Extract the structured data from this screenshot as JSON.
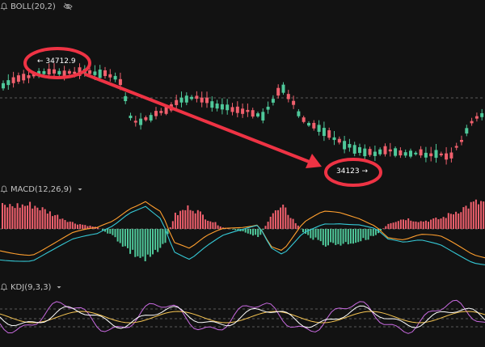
{
  "indicators": {
    "boll": {
      "label": "BOLL(20,2)",
      "icon": "bell-icon"
    },
    "macd": {
      "label": "MACD(12,26,9)",
      "icon": "bell-icon"
    },
    "kdj": {
      "label": "KDJ(9,3,3)",
      "icon": "bell-icon"
    }
  },
  "annotations": {
    "high": {
      "text": "← 34712.9",
      "value": 34712.9
    },
    "low": {
      "text": "34123 →",
      "value": 34123
    }
  },
  "colors": {
    "background": "#121212",
    "up": "#4fc89a",
    "down": "#f0606d",
    "annotation": "#ee3344",
    "grid": "#5a5a5a",
    "dif": "#ff9f2e",
    "dea": "#35c8d5",
    "k": "#ffffff",
    "d": "#f5c451",
    "j": "#c86ae0"
  }
}
